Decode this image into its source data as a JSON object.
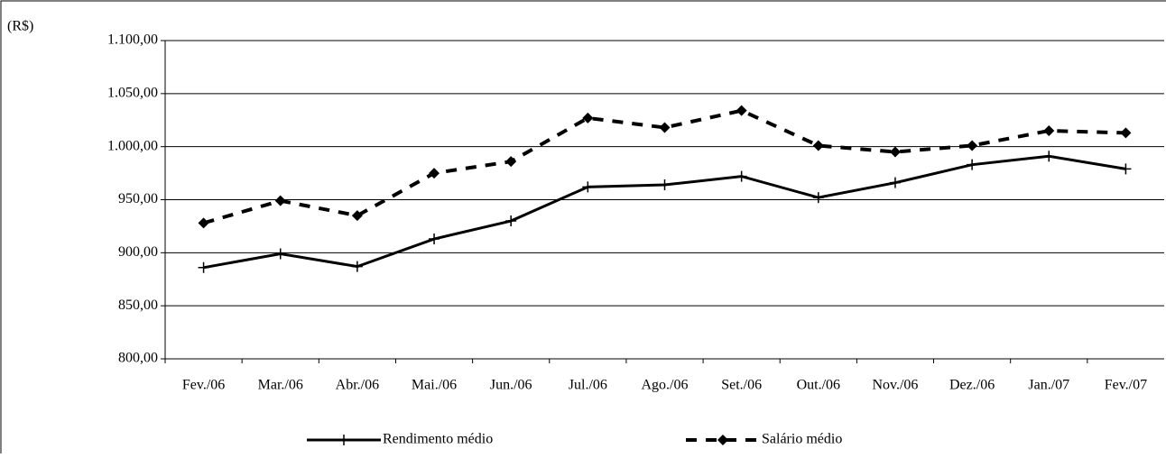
{
  "chart_data": {
    "type": "line",
    "y_label": "(R$)",
    "categories": [
      "Fev./06",
      "Mar./06",
      "Abr./06",
      "Mai./06",
      "Jun./06",
      "Jul./06",
      "Ago./06",
      "Set./06",
      "Out./06",
      "Nov./06",
      "Dez./06",
      "Jan./07",
      "Fev./07"
    ],
    "series": [
      {
        "name": "Rendimento médio",
        "color": "#000000",
        "style": "solid",
        "marker": "plus",
        "values": [
          886,
          899,
          887,
          913,
          930,
          962,
          964,
          972,
          952,
          966,
          983,
          991,
          979
        ]
      },
      {
        "name": "Salário médio",
        "color": "#000000",
        "style": "dashed",
        "marker": "diamond",
        "values": [
          928,
          949,
          935,
          975,
          986,
          1027,
          1018,
          1034,
          1001,
          995,
          1001,
          1015,
          1013
        ]
      }
    ],
    "ylim": [
      800,
      1100
    ],
    "yticks": [
      {
        "value": 800,
        "label": "800,00"
      },
      {
        "value": 850,
        "label": "850,00"
      },
      {
        "value": 900,
        "label": "900,00"
      },
      {
        "value": 950,
        "label": "950,00"
      },
      {
        "value": 1000,
        "label": "1.000,00"
      },
      {
        "value": 1050,
        "label": "1.050,00"
      },
      {
        "value": 1100,
        "label": "1.100,00"
      }
    ],
    "grid": true,
    "legend": "bottom"
  }
}
